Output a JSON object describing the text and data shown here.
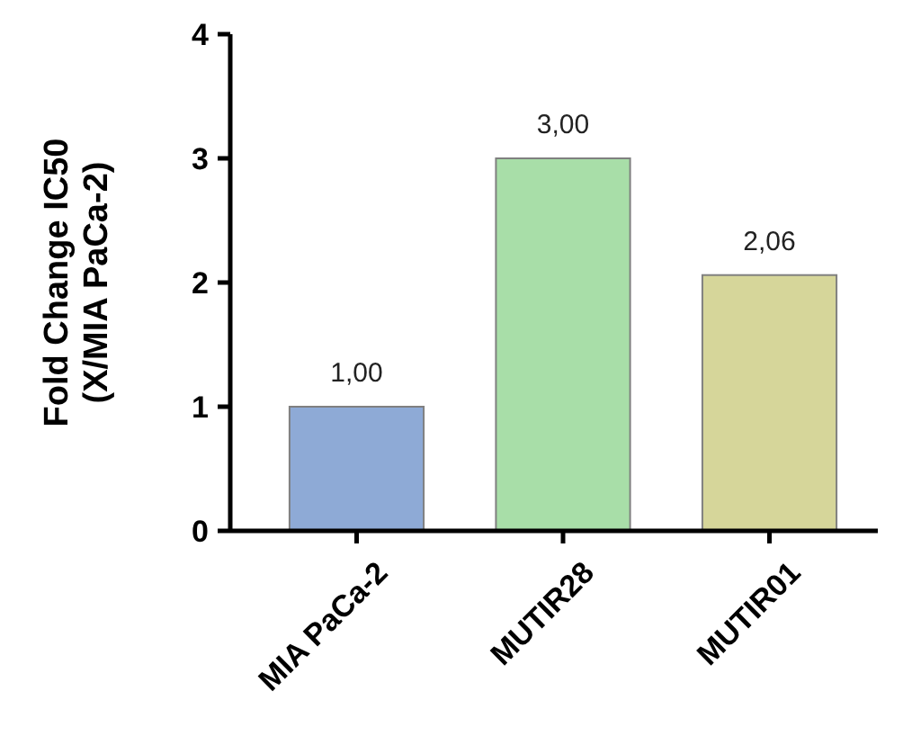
{
  "chart_data": {
    "type": "bar",
    "ylabel": "Fold Change IC50\n(X/MIA PaCa-2)",
    "categories": [
      "MIA PaCa-2",
      "MUTIR28",
      "MUTIR01"
    ],
    "values": [
      1.0,
      3.0,
      2.06
    ],
    "colors": [
      "#8eaad6",
      "#a8dea8",
      "#d6d69a"
    ],
    "value_labels": [
      "1,00",
      "3,00",
      "2,06"
    ],
    "ylim": [
      0,
      4
    ],
    "yticks": [
      0,
      1,
      2,
      3,
      4
    ],
    "grid": false
  }
}
